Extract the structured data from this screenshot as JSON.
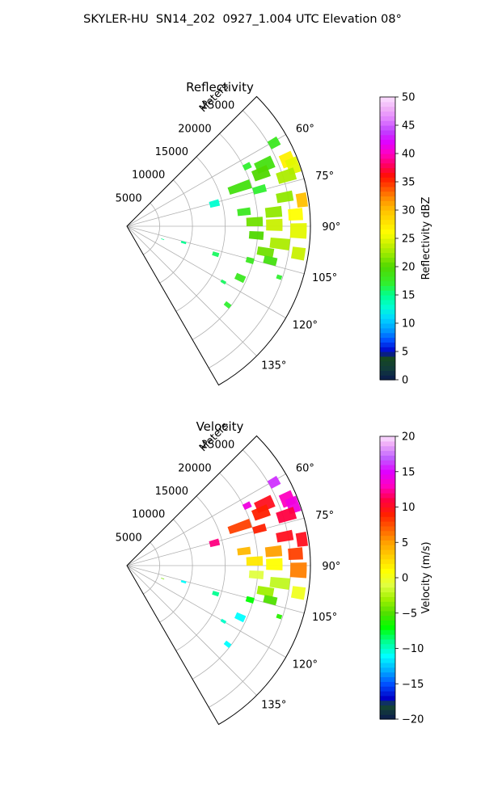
{
  "figure": {
    "suptitle": "SKYLER-HU  SN14_202  0927_1.004 UTC Elevation 08°"
  },
  "chart_data": [
    {
      "type": "heatmap",
      "title": "Reflectivity",
      "range_label": "Meters",
      "range_ticks": [
        5000,
        10000,
        15000,
        20000,
        25000
      ],
      "range_ticks_text": [
        "5000",
        "10000",
        "15000",
        "20000",
        "25000"
      ],
      "range_max": 28000,
      "azimuth_range": [
        45,
        150
      ],
      "azimuth_ticks": [
        60,
        75,
        90,
        105,
        120,
        135
      ],
      "azimuth_ticks_text": [
        "60°",
        "75°",
        "90°",
        "105°",
        "120°",
        "135°"
      ],
      "grid": true,
      "colorbar": {
        "label": "Reflectivity dBZ",
        "min": 0,
        "max": 50,
        "ticks": [
          0,
          5,
          10,
          15,
          20,
          25,
          30,
          35,
          40,
          45,
          50
        ],
        "ticks_text": [
          "0",
          "5",
          "10",
          "15",
          "20",
          "25",
          "30",
          "35",
          "40",
          "45",
          "50"
        ],
        "stops": [
          {
            "v": 0,
            "c": "#0b1a4e"
          },
          {
            "v": 2,
            "c": "#123c3a"
          },
          {
            "v": 4,
            "c": "#164a20"
          },
          {
            "v": 5,
            "c": "#0000c8"
          },
          {
            "v": 7,
            "c": "#0050ff"
          },
          {
            "v": 9,
            "c": "#00a0ff"
          },
          {
            "v": 11,
            "c": "#00d8ff"
          },
          {
            "v": 13,
            "c": "#00ffd0"
          },
          {
            "v": 15,
            "c": "#00ff90"
          },
          {
            "v": 17,
            "c": "#30f030"
          },
          {
            "v": 20,
            "c": "#50d800"
          },
          {
            "v": 22,
            "c": "#90e800"
          },
          {
            "v": 24,
            "c": "#c8f000"
          },
          {
            "v": 26,
            "c": "#ffff00"
          },
          {
            "v": 28,
            "c": "#ffe000"
          },
          {
            "v": 30,
            "c": "#ffc000"
          },
          {
            "v": 32,
            "c": "#ff9000"
          },
          {
            "v": 34,
            "c": "#ff5000"
          },
          {
            "v": 36,
            "c": "#ff1000"
          },
          {
            "v": 38,
            "c": "#ff0060"
          },
          {
            "v": 40,
            "c": "#ff00c0"
          },
          {
            "v": 42,
            "c": "#e000ff"
          },
          {
            "v": 44,
            "c": "#c040ff"
          },
          {
            "v": 46,
            "c": "#e080ff"
          },
          {
            "v": 48,
            "c": "#f0b0f8"
          },
          {
            "v": 50,
            "c": "#fbe0ff"
          }
        ]
      },
      "echoes": [
        {
          "az": 60.5,
          "r": 25800,
          "daz": 3.0,
          "dr": 1600,
          "v": 18
        },
        {
          "az": 63.5,
          "r": 20500,
          "daz": 2.5,
          "dr": 1200,
          "v": 17
        },
        {
          "az": 66.0,
          "r": 23000,
          "daz": 4.5,
          "dr": 2800,
          "v": 19
        },
        {
          "az": 67.5,
          "r": 26500,
          "daz": 4.5,
          "dr": 2000,
          "v": 27
        },
        {
          "az": 68.5,
          "r": 22000,
          "daz": 4.5,
          "dr": 2500,
          "v": 20
        },
        {
          "az": 70.0,
          "r": 27000,
          "daz": 5.0,
          "dr": 1800,
          "v": 25
        },
        {
          "az": 71.0,
          "r": 18200,
          "daz": 4.0,
          "dr": 3500,
          "v": 19
        },
        {
          "az": 72.5,
          "r": 25500,
          "daz": 4.0,
          "dr": 2800,
          "v": 23
        },
        {
          "az": 74.5,
          "r": 21000,
          "daz": 3.0,
          "dr": 2000,
          "v": 17
        },
        {
          "az": 75.5,
          "r": 13800,
          "daz": 4.0,
          "dr": 1500,
          "v": 13
        },
        {
          "az": 79.5,
          "r": 24500,
          "daz": 3.5,
          "dr": 2500,
          "v": 22
        },
        {
          "az": 81.5,
          "r": 27000,
          "daz": 4.5,
          "dr": 1600,
          "v": 30
        },
        {
          "az": 83.0,
          "r": 18000,
          "daz": 3.5,
          "dr": 2000,
          "v": 18
        },
        {
          "az": 84.5,
          "r": 22500,
          "daz": 4.0,
          "dr": 2500,
          "v": 22
        },
        {
          "az": 86.0,
          "r": 25800,
          "daz": 4.0,
          "dr": 2200,
          "v": 26
        },
        {
          "az": 88.0,
          "r": 19500,
          "daz": 4.0,
          "dr": 2500,
          "v": 21
        },
        {
          "az": 89.5,
          "r": 22500,
          "daz": 4.5,
          "dr": 2500,
          "v": 24
        },
        {
          "az": 91.5,
          "r": 26200,
          "daz": 5.0,
          "dr": 2500,
          "v": 25
        },
        {
          "az": 94.0,
          "r": 19800,
          "daz": 3.5,
          "dr": 2200,
          "v": 20
        },
        {
          "az": 96.5,
          "r": 23500,
          "daz": 4.0,
          "dr": 3000,
          "v": 23
        },
        {
          "az": 99.0,
          "r": 26500,
          "daz": 4.0,
          "dr": 2000,
          "v": 24
        },
        {
          "az": 100.5,
          "r": 21500,
          "daz": 3.5,
          "dr": 2500,
          "v": 21
        },
        {
          "az": 103.5,
          "r": 22500,
          "daz": 3.0,
          "dr": 2000,
          "v": 19
        },
        {
          "az": 105.5,
          "r": 19500,
          "daz": 2.5,
          "dr": 1200,
          "v": 18
        },
        {
          "az": 106.0,
          "r": 9000,
          "daz": 2.0,
          "dr": 800,
          "v": 15
        },
        {
          "az": 107.5,
          "r": 14200,
          "daz": 2.5,
          "dr": 1000,
          "v": 16
        },
        {
          "az": 108.5,
          "r": 24500,
          "daz": 1.5,
          "dr": 800,
          "v": 17
        },
        {
          "az": 114.5,
          "r": 19000,
          "daz": 3.0,
          "dr": 1500,
          "v": 18
        },
        {
          "az": 110.0,
          "r": 5800,
          "daz": 1.0,
          "dr": 500,
          "v": 15
        },
        {
          "az": 120.0,
          "r": 17000,
          "daz": 1.5,
          "dr": 800,
          "v": 16
        },
        {
          "az": 128.0,
          "r": 19500,
          "daz": 2.0,
          "dr": 1000,
          "v": 17
        }
      ]
    },
    {
      "type": "heatmap",
      "title": "Velocity",
      "range_label": "Meters",
      "range_ticks": [
        5000,
        10000,
        15000,
        20000,
        25000
      ],
      "range_ticks_text": [
        "5000",
        "10000",
        "15000",
        "20000",
        "25000"
      ],
      "range_max": 28000,
      "azimuth_range": [
        45,
        150
      ],
      "azimuth_ticks": [
        60,
        75,
        90,
        105,
        120,
        135
      ],
      "azimuth_ticks_text": [
        "60°",
        "75°",
        "90°",
        "105°",
        "120°",
        "135°"
      ],
      "grid": true,
      "colorbar": {
        "label": "Velocity (m/s)",
        "min": -20,
        "max": 20,
        "ticks": [
          -20,
          -15,
          -10,
          -5,
          0,
          5,
          10,
          15,
          20
        ],
        "ticks_text": [
          "−20",
          "−15",
          "−10",
          "−5",
          "0",
          "5",
          "10",
          "15",
          "20"
        ],
        "stops": [
          {
            "v": -20,
            "c": "#0b1a4e"
          },
          {
            "v": -18,
            "c": "#164a30"
          },
          {
            "v": -17,
            "c": "#0000c8"
          },
          {
            "v": -15,
            "c": "#0050ff"
          },
          {
            "v": -13,
            "c": "#00b0ff"
          },
          {
            "v": -11,
            "c": "#00ffff"
          },
          {
            "v": -9,
            "c": "#00ff90"
          },
          {
            "v": -7,
            "c": "#00ff00"
          },
          {
            "v": -5,
            "c": "#50e000"
          },
          {
            "v": -3,
            "c": "#a0f000"
          },
          {
            "v": -1,
            "c": "#e0ff40"
          },
          {
            "v": 1,
            "c": "#ffff00"
          },
          {
            "v": 3,
            "c": "#ffd000"
          },
          {
            "v": 5,
            "c": "#ffa000"
          },
          {
            "v": 7,
            "c": "#ff6000"
          },
          {
            "v": 9,
            "c": "#ff2000"
          },
          {
            "v": 11,
            "c": "#ff0040"
          },
          {
            "v": 13,
            "c": "#ff00c0"
          },
          {
            "v": 15,
            "c": "#e000ff"
          },
          {
            "v": 17,
            "c": "#c060ff"
          },
          {
            "v": 19,
            "c": "#f0b0f8"
          },
          {
            "v": 20,
            "c": "#fbe0ff"
          }
        ]
      },
      "echoes": [
        {
          "az": 60.5,
          "r": 25800,
          "daz": 3.0,
          "dr": 1600,
          "v": 16
        },
        {
          "az": 63.5,
          "r": 20500,
          "daz": 2.5,
          "dr": 1200,
          "v": 14
        },
        {
          "az": 66.0,
          "r": 23000,
          "daz": 4.5,
          "dr": 2800,
          "v": 10
        },
        {
          "az": 67.5,
          "r": 26500,
          "daz": 4.5,
          "dr": 2000,
          "v": 13
        },
        {
          "az": 68.5,
          "r": 22000,
          "daz": 4.5,
          "dr": 2500,
          "v": 9
        },
        {
          "az": 70.0,
          "r": 27000,
          "daz": 5.0,
          "dr": 1800,
          "v": 14
        },
        {
          "az": 71.0,
          "r": 18200,
          "daz": 4.0,
          "dr": 3500,
          "v": 8
        },
        {
          "az": 72.5,
          "r": 25500,
          "daz": 4.0,
          "dr": 2800,
          "v": 11
        },
        {
          "az": 74.5,
          "r": 21000,
          "daz": 3.0,
          "dr": 2000,
          "v": 9
        },
        {
          "az": 75.5,
          "r": 13800,
          "daz": 4.0,
          "dr": 1500,
          "v": 12
        },
        {
          "az": 79.5,
          "r": 24500,
          "daz": 3.5,
          "dr": 2500,
          "v": 10
        },
        {
          "az": 81.5,
          "r": 27000,
          "daz": 4.5,
          "dr": 1600,
          "v": 10
        },
        {
          "az": 83.0,
          "r": 18000,
          "daz": 3.5,
          "dr": 2000,
          "v": 4
        },
        {
          "az": 84.5,
          "r": 22500,
          "daz": 4.0,
          "dr": 2500,
          "v": 5
        },
        {
          "az": 86.0,
          "r": 25800,
          "daz": 4.0,
          "dr": 2200,
          "v": 8
        },
        {
          "az": 88.0,
          "r": 19500,
          "daz": 4.0,
          "dr": 2500,
          "v": 2
        },
        {
          "az": 89.5,
          "r": 22500,
          "daz": 4.5,
          "dr": 2500,
          "v": 1
        },
        {
          "az": 91.5,
          "r": 26200,
          "daz": 5.0,
          "dr": 2500,
          "v": 6
        },
        {
          "az": 94.0,
          "r": 19800,
          "daz": 3.5,
          "dr": 2200,
          "v": -1
        },
        {
          "az": 96.5,
          "r": 23500,
          "daz": 4.0,
          "dr": 3000,
          "v": -2
        },
        {
          "az": 99.0,
          "r": 26500,
          "daz": 4.0,
          "dr": 2000,
          "v": 0
        },
        {
          "az": 100.5,
          "r": 21500,
          "daz": 3.5,
          "dr": 2500,
          "v": -3
        },
        {
          "az": 103.5,
          "r": 22500,
          "daz": 3.0,
          "dr": 2000,
          "v": -5
        },
        {
          "az": 105.5,
          "r": 19500,
          "daz": 2.5,
          "dr": 1200,
          "v": -7
        },
        {
          "az": 106.0,
          "r": 9000,
          "daz": 2.0,
          "dr": 800,
          "v": -11
        },
        {
          "az": 107.5,
          "r": 14200,
          "daz": 2.5,
          "dr": 1000,
          "v": -9
        },
        {
          "az": 108.5,
          "r": 24500,
          "daz": 1.5,
          "dr": 800,
          "v": -6
        },
        {
          "az": 114.5,
          "r": 19000,
          "daz": 3.0,
          "dr": 1500,
          "v": -11
        },
        {
          "az": 110.0,
          "r": 5800,
          "daz": 1.0,
          "dr": 500,
          "v": -4
        },
        {
          "az": 120.0,
          "r": 17000,
          "daz": 1.5,
          "dr": 800,
          "v": -10
        },
        {
          "az": 128.0,
          "r": 19500,
          "daz": 2.0,
          "dr": 1000,
          "v": -11
        }
      ]
    }
  ]
}
